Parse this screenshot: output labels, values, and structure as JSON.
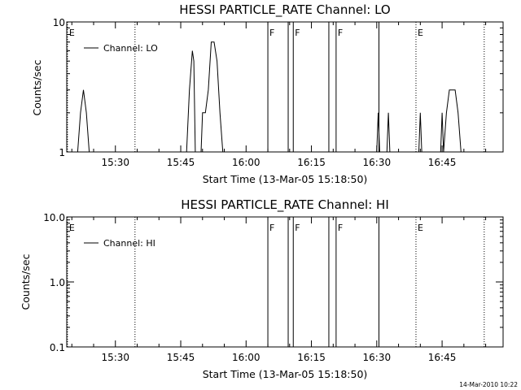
{
  "footer": {
    "timestamp": "14-Mar-2010 10:22"
  },
  "chart_data": [
    {
      "type": "line",
      "title": "HESSI PARTICLE_RATE Channel: LO",
      "xlabel": "Start Time (13-Mar-05 15:18:50)",
      "ylabel": "Counts/sec",
      "yscale": "log",
      "ylim": [
        1,
        10
      ],
      "xlim": [
        "15:18:50",
        "16:59:00"
      ],
      "grid": false,
      "legend_position": "top-left",
      "x_ticks": [
        "15:30",
        "15:45",
        "16:00",
        "16:15",
        "16:30",
        "16:45"
      ],
      "y_ticks": [
        "1",
        "10"
      ],
      "series": [
        {
          "name": "Channel: LO",
          "x": [
            "15:21:20",
            "15:22:00",
            "15:22:40",
            "15:23:20",
            "15:24:00",
            "15:46:20",
            "15:47:00",
            "15:47:40",
            "15:48:00",
            "15:48:20",
            "15:49:40",
            "15:50:00",
            "15:50:40",
            "15:51:20",
            "15:52:00",
            "15:52:40",
            "15:53:20",
            "15:54:00",
            "15:54:40",
            "15:55:40",
            "16:30:00",
            "16:30:20",
            "16:30:40",
            "16:32:20",
            "16:32:40",
            "16:33:00",
            "16:39:40",
            "16:40:00",
            "16:40:20",
            "16:44:40",
            "16:45:00",
            "16:45:20",
            "16:46:00",
            "16:46:40",
            "16:47:20",
            "16:48:00",
            "16:48:40",
            "16:49:20"
          ],
          "values": [
            1,
            2,
            3,
            2,
            1,
            1,
            3,
            6,
            5,
            1,
            1,
            2,
            2,
            3,
            7,
            7,
            5,
            2,
            1,
            1,
            1,
            2,
            1,
            1,
            2,
            1,
            1,
            2,
            1,
            1,
            2,
            1,
            2,
            3,
            3,
            3,
            2,
            1
          ]
        }
      ],
      "markers": [
        {
          "label": "E",
          "time": "15:19:00",
          "style": "dotted"
        },
        {
          "label": "",
          "time": "15:34:30",
          "style": "dotted"
        },
        {
          "label": "F",
          "time": "16:05:00",
          "style": "solid"
        },
        {
          "label": "",
          "time": "16:09:40",
          "style": "solid"
        },
        {
          "label": "F",
          "time": "16:10:50",
          "style": "solid"
        },
        {
          "label": "",
          "time": "16:19:00",
          "style": "solid"
        },
        {
          "label": "F",
          "time": "16:20:40",
          "style": "solid"
        },
        {
          "label": "",
          "time": "16:30:30",
          "style": "solid"
        },
        {
          "label": "E",
          "time": "16:39:00",
          "style": "dotted"
        },
        {
          "label": "",
          "time": "16:54:40",
          "style": "dotted"
        }
      ]
    },
    {
      "type": "line",
      "title": "HESSI PARTICLE_RATE Channel: HI",
      "xlabel": "Start Time (13-Mar-05 15:18:50)",
      "ylabel": "Counts/sec",
      "yscale": "log",
      "ylim": [
        0.1,
        10
      ],
      "xlim": [
        "15:18:50",
        "16:59:00"
      ],
      "grid": false,
      "legend_position": "top-left",
      "x_ticks": [
        "15:30",
        "15:45",
        "16:00",
        "16:15",
        "16:30",
        "16:45"
      ],
      "y_ticks": [
        "0.1",
        "1.0",
        "10.0"
      ],
      "series": [
        {
          "name": "Channel: HI",
          "x": [],
          "values": []
        }
      ],
      "markers": [
        {
          "label": "E",
          "time": "15:19:00",
          "style": "dotted"
        },
        {
          "label": "",
          "time": "15:34:30",
          "style": "dotted"
        },
        {
          "label": "F",
          "time": "16:05:00",
          "style": "solid"
        },
        {
          "label": "",
          "time": "16:09:40",
          "style": "solid"
        },
        {
          "label": "F",
          "time": "16:10:50",
          "style": "solid"
        },
        {
          "label": "",
          "time": "16:19:00",
          "style": "solid"
        },
        {
          "label": "F",
          "time": "16:20:40",
          "style": "solid"
        },
        {
          "label": "",
          "time": "16:30:30",
          "style": "solid"
        },
        {
          "label": "E",
          "time": "16:39:00",
          "style": "dotted"
        },
        {
          "label": "",
          "time": "16:54:40",
          "style": "dotted"
        }
      ]
    }
  ]
}
